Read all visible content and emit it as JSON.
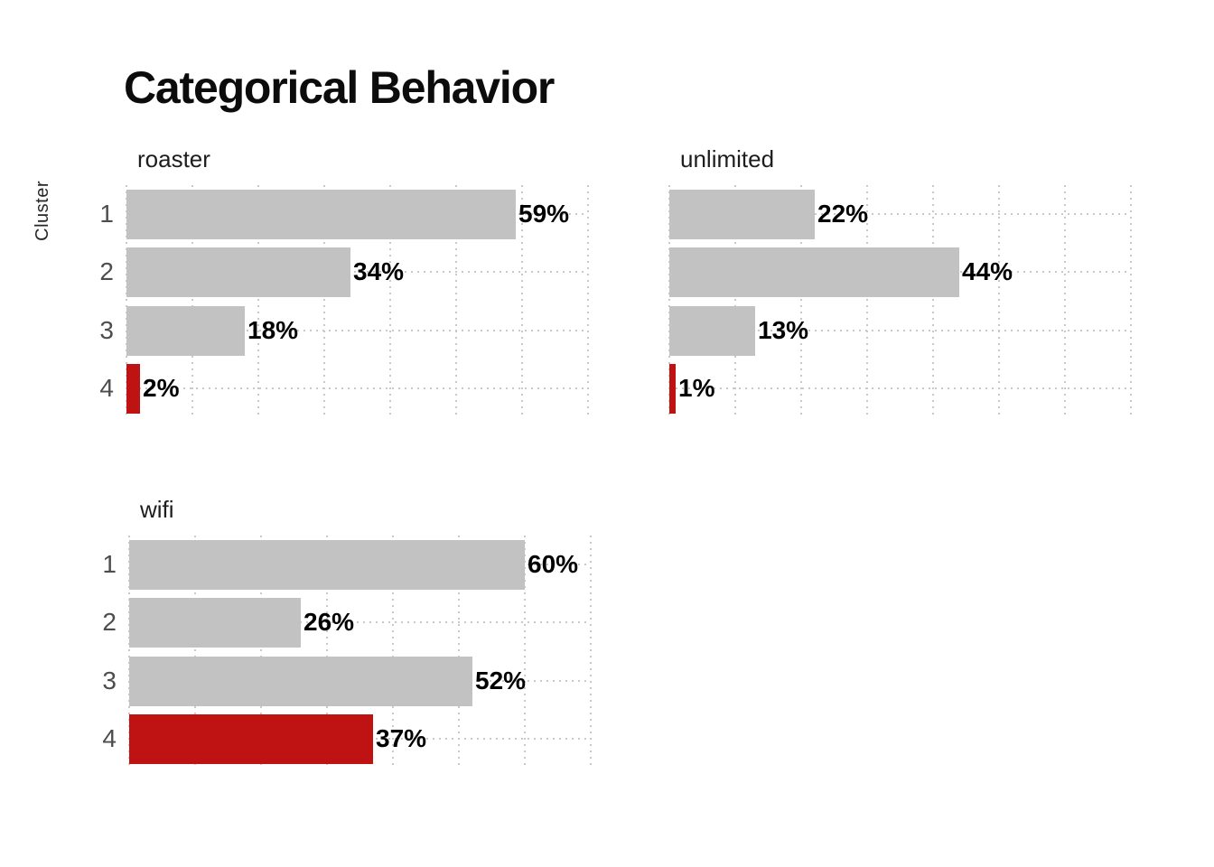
{
  "page": {
    "title": "Categorical Behavior"
  },
  "colors": {
    "bar": "#c2c2c2",
    "highlight": "#bf1212",
    "grid": "#c9c9c9",
    "value_label": "#000000",
    "category_label": "#4d4d4d",
    "title": "#0c0c0c",
    "subtitle": "#1d1d1d",
    "background": "#ffffff"
  },
  "chart_data": [
    {
      "type": "bar",
      "orientation": "horizontal",
      "title": "roaster",
      "ylabel": "Cluster",
      "categories": [
        "1",
        "2",
        "3",
        "4"
      ],
      "values": [
        59,
        34,
        18,
        2
      ],
      "value_labels": [
        "59%",
        "34%",
        "18%",
        "2%"
      ],
      "xlim": [
        0,
        70
      ],
      "tick_step": 10,
      "grid": true,
      "highlight_category": "4",
      "show_category_labels": true,
      "show_y_axis_title": true
    },
    {
      "type": "bar",
      "orientation": "horizontal",
      "title": "unlimited",
      "ylabel": "Cluster",
      "categories": [
        "1",
        "2",
        "3",
        "4"
      ],
      "values": [
        22,
        44,
        13,
        1
      ],
      "value_labels": [
        "22%",
        "44%",
        "13%",
        "1%"
      ],
      "xlim": [
        0,
        70
      ],
      "tick_step": 10,
      "grid": true,
      "highlight_category": "4",
      "show_category_labels": false,
      "show_y_axis_title": false
    },
    {
      "type": "bar",
      "orientation": "horizontal",
      "title": "wifi",
      "ylabel": "Cluster",
      "categories": [
        "1",
        "2",
        "3",
        "4"
      ],
      "values": [
        60,
        26,
        52,
        37
      ],
      "value_labels": [
        "60%",
        "26%",
        "52%",
        "37%"
      ],
      "xlim": [
        0,
        70
      ],
      "tick_step": 10,
      "grid": true,
      "highlight_category": "4",
      "show_category_labels": true,
      "show_y_axis_title": false
    }
  ]
}
